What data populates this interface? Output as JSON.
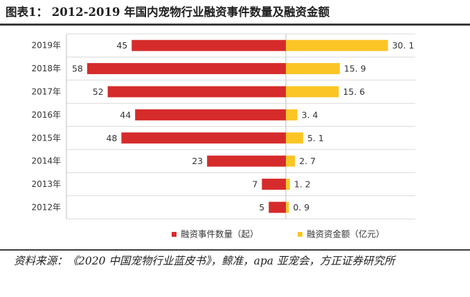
{
  "figure": {
    "title": "图表1：  2012-2019 年国内宠物行业融资事件数量及融资金额",
    "source": "资料来源：《2020 中国宠物行业蓝皮书》，鲸准，apa 亚宠会，方正证券研究所"
  },
  "chart_data": {
    "type": "bar",
    "orientation": "horizontal",
    "layout": "diverging",
    "categories": [
      "2019年",
      "2018年",
      "2017年",
      "2016年",
      "2015年",
      "2014年",
      "2013年",
      "2012年"
    ],
    "series": [
      {
        "name": "融资事件数量（起）",
        "values": [
          45,
          58,
          52,
          44,
          48,
          23,
          7,
          5
        ],
        "color": "#d62b2b",
        "side": "left",
        "labels": [
          "45",
          "58",
          "52",
          "44",
          "48",
          "23",
          "7",
          "5"
        ]
      },
      {
        "name": "融资资金额（亿元）",
        "values": [
          30.1,
          15.9,
          15.6,
          3.4,
          5.1,
          2.7,
          1.2,
          0.9
        ],
        "color": "#fcc526",
        "side": "right",
        "labels": [
          "30. 1",
          "15. 9",
          "15. 6",
          "3. 4",
          "5. 1",
          "2. 7",
          "1. 2",
          "0. 9"
        ]
      }
    ],
    "grid": true,
    "legend_position": "bottom"
  }
}
